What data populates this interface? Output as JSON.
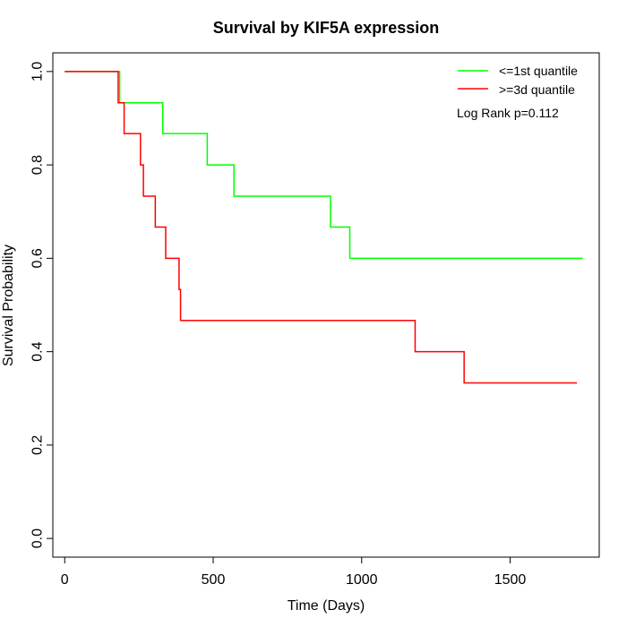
{
  "chart_data": {
    "type": "line",
    "subtype": "kaplan-meier step",
    "title": "Survival by KIF5A expression",
    "xlabel": "Time (Days)",
    "ylabel": "Survival Probability",
    "xlim": [
      -40,
      1800
    ],
    "ylim": [
      -0.04,
      1.04
    ],
    "x_ticks": [
      0,
      500,
      1000,
      1500
    ],
    "x_tick_labels": [
      "0",
      "500",
      "1000",
      "1500"
    ],
    "y_ticks": [
      0.0,
      0.2,
      0.4,
      0.6,
      0.8,
      1.0
    ],
    "y_tick_labels": [
      "0.0",
      "0.2",
      "0.4",
      "0.6",
      "0.8",
      "1.0"
    ],
    "grid": false,
    "legend_position": "top-right",
    "annotation": "Log Rank p=0.112",
    "series": [
      {
        "name": "<=1st quantile",
        "color": "#00ff00",
        "x": [
          0,
          185,
          330,
          480,
          570,
          895,
          960,
          1745
        ],
        "y": [
          1.0,
          0.933,
          0.867,
          0.8,
          0.733,
          0.667,
          0.6,
          0.6
        ]
      },
      {
        "name": ">=3d quantile",
        "color": "#ff0000",
        "x": [
          0,
          180,
          200,
          255,
          265,
          305,
          340,
          385,
          390,
          1180,
          1345,
          1725
        ],
        "y": [
          1.0,
          0.933,
          0.867,
          0.8,
          0.733,
          0.667,
          0.6,
          0.533,
          0.467,
          0.4,
          0.333,
          0.333
        ]
      }
    ]
  }
}
